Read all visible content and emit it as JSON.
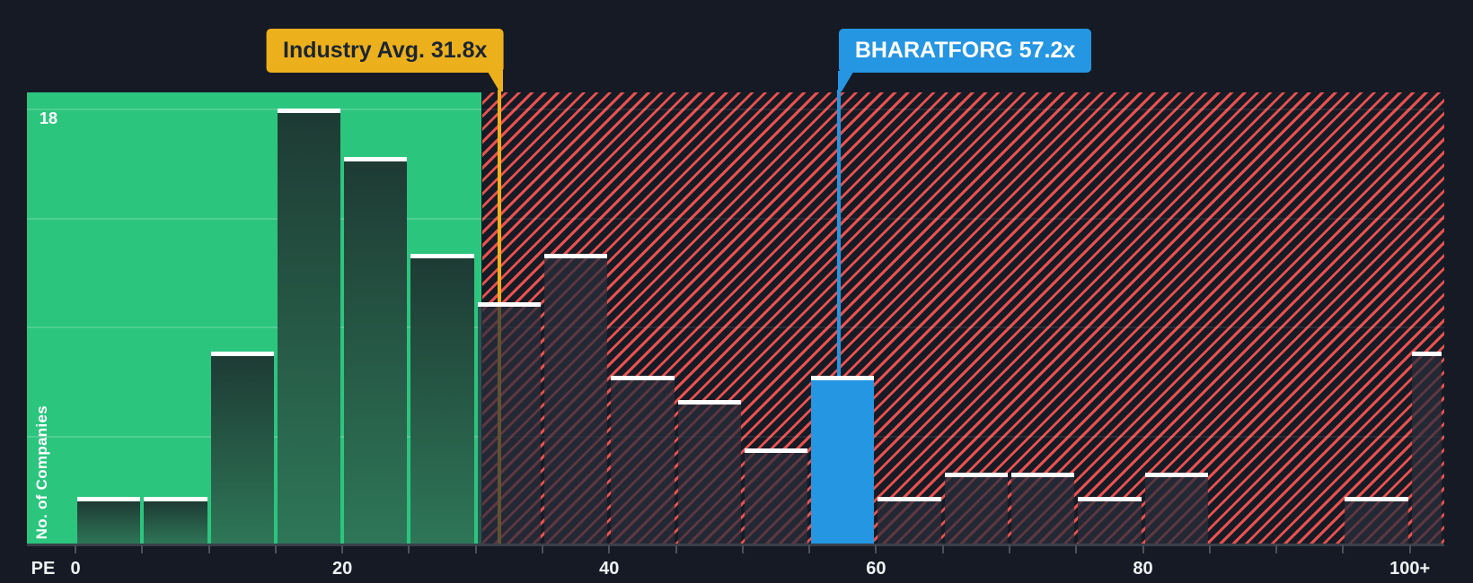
{
  "chart": {
    "y_max_label": "18",
    "y_axis_title": "No. of Companies",
    "x_axis_title": "PE",
    "markers": {
      "industry": {
        "label": "Industry Avg. 31.8x"
      },
      "company": {
        "label": "BHARATFORG 57.2x"
      }
    }
  },
  "chart_data": {
    "type": "bar",
    "title": "Histogram of company PE ratios vs industry average",
    "xlabel": "PE",
    "ylabel": "No. of Companies",
    "ylim": [
      0,
      18
    ],
    "grid_values": [
      4.5,
      9,
      13.5,
      18
    ],
    "x_axis": {
      "pe_min": 0,
      "pe_max": 102.5,
      "tick_step": 5
    },
    "x_tick_labels": [
      {
        "label": "0",
        "pe": 0
      },
      {
        "label": "20",
        "pe": 20
      },
      {
        "label": "40",
        "pe": 40
      },
      {
        "label": "60",
        "pe": 60
      },
      {
        "label": "80",
        "pe": 80
      },
      {
        "label": "100+",
        "pe": 100
      }
    ],
    "bins": [
      {
        "range": [
          0,
          5
        ],
        "count": 2,
        "zone": "below_avg"
      },
      {
        "range": [
          5,
          10
        ],
        "count": 2,
        "zone": "below_avg"
      },
      {
        "range": [
          10,
          15
        ],
        "count": 8,
        "zone": "below_avg"
      },
      {
        "range": [
          15,
          20
        ],
        "count": 18,
        "zone": "below_avg"
      },
      {
        "range": [
          20,
          25
        ],
        "count": 16,
        "zone": "below_avg"
      },
      {
        "range": [
          25,
          30
        ],
        "count": 12,
        "zone": "below_avg"
      },
      {
        "range": [
          30,
          35
        ],
        "count": 10,
        "zone": "above_avg"
      },
      {
        "range": [
          35,
          40
        ],
        "count": 12,
        "zone": "above_avg"
      },
      {
        "range": [
          40,
          45
        ],
        "count": 7,
        "zone": "above_avg"
      },
      {
        "range": [
          45,
          50
        ],
        "count": 6,
        "zone": "above_avg"
      },
      {
        "range": [
          50,
          55
        ],
        "count": 4,
        "zone": "above_avg"
      },
      {
        "range": [
          55,
          60
        ],
        "count": 7,
        "zone": "highlight_company"
      },
      {
        "range": [
          60,
          65
        ],
        "count": 2,
        "zone": "above_avg"
      },
      {
        "range": [
          65,
          70
        ],
        "count": 3,
        "zone": "above_avg"
      },
      {
        "range": [
          70,
          75
        ],
        "count": 3,
        "zone": "above_avg"
      },
      {
        "range": [
          75,
          80
        ],
        "count": 2,
        "zone": "above_avg"
      },
      {
        "range": [
          80,
          85
        ],
        "count": 3,
        "zone": "above_avg"
      },
      {
        "range": [
          85,
          90
        ],
        "count": 0,
        "zone": "above_avg"
      },
      {
        "range": [
          90,
          95
        ],
        "count": 0,
        "zone": "above_avg"
      },
      {
        "range": [
          95,
          100
        ],
        "count": 2,
        "zone": "above_avg"
      },
      {
        "range": [
          100,
          102.5
        ],
        "count": 8,
        "zone": "above_avg",
        "label": "100+"
      }
    ],
    "markers": [
      {
        "name": "industry",
        "label": "Industry Avg. 31.8x",
        "value": 31.8,
        "color": "#edb01d"
      },
      {
        "name": "company",
        "label": "BHARATFORG 57.2x",
        "value": 57.2,
        "color": "#2596e2"
      }
    ],
    "legend_position": "none",
    "grid": true
  },
  "colors": {
    "background": "#151a24",
    "below_avg_zone_green": "#2cc57e",
    "hatch_red": "#e8514e",
    "company_blue": "#2596e2",
    "industry_yellow": "#edb01d",
    "bar_cap_white": "#ffffff"
  }
}
